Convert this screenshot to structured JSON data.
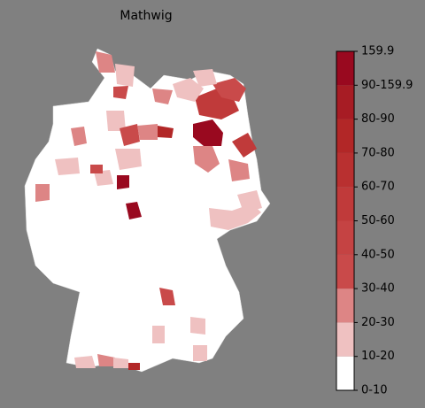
{
  "title": "Mathwig",
  "colorbar": {
    "labels": [
      "0-10",
      "10-20",
      "20-30",
      "30-40",
      "40-50",
      "50-60",
      "60-70",
      "70-80",
      "80-90",
      "90-159.9",
      "159.9"
    ],
    "colors": [
      "#ffffff",
      "#efc1c1",
      "#dd8585",
      "#c94a4a",
      "#c54343",
      "#c03a3a",
      "#b93030",
      "#b22727",
      "#a71c24",
      "#99091f"
    ]
  }
}
